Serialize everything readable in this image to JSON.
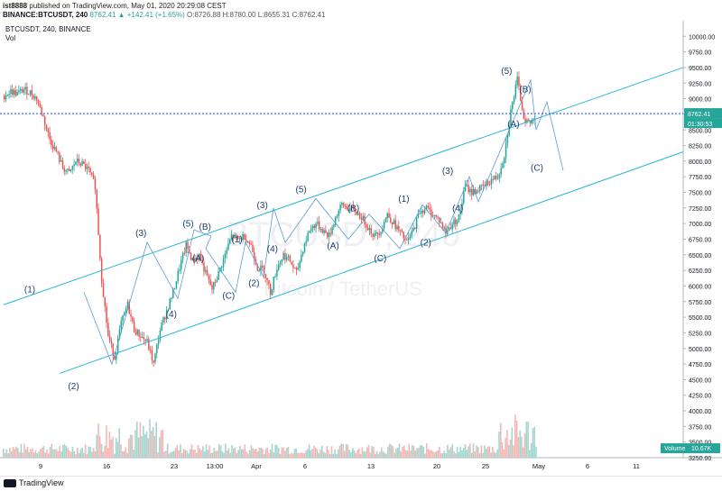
{
  "header": {
    "publisher": "ist8888",
    "published_text": "published on TradingView.com, May 01, 2020 20:29:08 CEST",
    "symbol_line": "BINANCE:BTCUSDT, 240",
    "price_change": "8762.41 ▲ +142.41 (+1.65%)",
    "ohlc": "O:8726.88 H:8780.00 L:8655.31 C:8762.41"
  },
  "chart_title": "BTCUSDT, 240, BINANCE",
  "volume_label": "Vol",
  "watermark": {
    "symbol": "BTCUSDT, 240",
    "name": "Bitcoin / TetherUS"
  },
  "footer": {
    "brand": "TradingView"
  },
  "chart_data": {
    "type": "candlestick",
    "title": "BTCUSDT, 240, BINANCE",
    "xlabel": "",
    "ylabel": "",
    "ylim": [
      3250,
      10250
    ],
    "y_ticks": [
      "10000.00",
      "9750.00",
      "9500.00",
      "9250.00",
      "9000.00",
      "8750.00",
      "8500.00",
      "8250.00",
      "8000.00",
      "7750.00",
      "7500.00",
      "7250.00",
      "7000.00",
      "6750.00",
      "6500.00",
      "6250.00",
      "6000.00",
      "5750.00",
      "5500.00",
      "5250.00",
      "5000.00",
      "4750.00",
      "4500.00",
      "4250.00",
      "4000.00",
      "3750.00",
      "3500.00",
      "3250.00"
    ],
    "x_ticks": [
      "9",
      "16",
      "23",
      "13:00",
      "Apr",
      "6",
      "13",
      "20",
      "25",
      "May",
      "6",
      "11"
    ],
    "last_price": "8762.41",
    "countdown": "01:30:53",
    "volume_value": "10.67K",
    "volume_title": "Volume",
    "colors": {
      "up": "#26a69a",
      "down": "#ef5350",
      "channel": "#29b6d9",
      "wave": "#5b9bd5",
      "label": "#1f3d6e",
      "lastline": "#2962ff"
    },
    "price_path": [
      [
        0,
        9050
      ],
      [
        1,
        9120
      ],
      [
        2,
        9080
      ],
      [
        3,
        9150
      ],
      [
        4,
        9100
      ],
      [
        5,
        9000
      ],
      [
        6,
        8700
      ],
      [
        7,
        8350
      ],
      [
        8,
        8150
      ],
      [
        9,
        7900
      ],
      [
        10,
        7800
      ],
      [
        11,
        8000
      ],
      [
        12,
        7950
      ],
      [
        13,
        7850
      ],
      [
        14,
        7600
      ],
      [
        15,
        6100
      ],
      [
        16,
        5200
      ],
      [
        17,
        4850
      ],
      [
        18,
        5400
      ],
      [
        19,
        5700
      ],
      [
        20,
        5300
      ],
      [
        21,
        5200
      ],
      [
        22,
        5100
      ],
      [
        23,
        4750
      ],
      [
        24,
        5300
      ],
      [
        25,
        5600
      ],
      [
        26,
        5900
      ],
      [
        27,
        6300
      ],
      [
        28,
        6650
      ],
      [
        29,
        6400
      ],
      [
        30,
        6500
      ],
      [
        31,
        6200
      ],
      [
        32,
        5950
      ],
      [
        33,
        6200
      ],
      [
        34,
        6500
      ],
      [
        35,
        6800
      ],
      [
        36,
        6750
      ],
      [
        37,
        6800
      ],
      [
        38,
        6650
      ],
      [
        39,
        6300
      ],
      [
        40,
        6250
      ],
      [
        41,
        5900
      ],
      [
        42,
        6300
      ],
      [
        43,
        6500
      ],
      [
        44,
        6400
      ],
      [
        45,
        6200
      ],
      [
        46,
        6600
      ],
      [
        47,
        6900
      ],
      [
        48,
        7000
      ],
      [
        49,
        6900
      ],
      [
        50,
        6800
      ],
      [
        51,
        7100
      ],
      [
        52,
        7300
      ],
      [
        53,
        7250
      ],
      [
        54,
        7200
      ],
      [
        55,
        7100
      ],
      [
        56,
        6950
      ],
      [
        57,
        6800
      ],
      [
        58,
        6900
      ],
      [
        59,
        7150
      ],
      [
        60,
        7000
      ],
      [
        61,
        6850
      ],
      [
        62,
        6700
      ],
      [
        63,
        6900
      ],
      [
        64,
        7200
      ],
      [
        65,
        7250
      ],
      [
        66,
        7150
      ],
      [
        67,
        7050
      ],
      [
        68,
        6850
      ],
      [
        69,
        7000
      ],
      [
        70,
        7100
      ],
      [
        71,
        7600
      ],
      [
        72,
        7500
      ],
      [
        73,
        7550
      ],
      [
        74,
        7600
      ],
      [
        75,
        7700
      ],
      [
        76,
        7750
      ],
      [
        77,
        8100
      ],
      [
        78,
        8800
      ],
      [
        79,
        9300
      ],
      [
        80,
        8700
      ],
      [
        81,
        8600
      ],
      [
        82,
        8762
      ]
    ],
    "wave_labels": [
      {
        "text": "(1)",
        "x": 1.5,
        "y": 5900
      },
      {
        "text": "(2)",
        "x": 4.1,
        "y": 4350
      },
      {
        "text": "(3)",
        "x": 8.1,
        "y": 6800
      },
      {
        "text": "(4)",
        "x": 9.9,
        "y": 5500
      },
      {
        "text": "(5)",
        "x": 10.9,
        "y": 6950
      },
      {
        "text": "(B)",
        "x": 11.9,
        "y": 6900
      },
      {
        "text": "(A)",
        "x": 11.5,
        "y": 6400
      },
      {
        "text": "(C)",
        "x": 13.3,
        "y": 5800
      },
      {
        "text": "(1)",
        "x": 13.8,
        "y": 6700
      },
      {
        "text": "(2)",
        "x": 14.8,
        "y": 6000
      },
      {
        "text": "(3)",
        "x": 15.3,
        "y": 7250
      },
      {
        "text": "(4)",
        "x": 15.9,
        "y": 6550
      },
      {
        "text": "(5)",
        "x": 17.6,
        "y": 7500
      },
      {
        "text": "(A)",
        "x": 19.5,
        "y": 6600
      },
      {
        "text": "(B)",
        "x": 20.7,
        "y": 7200
      },
      {
        "text": "(C)",
        "x": 22.3,
        "y": 6400
      },
      {
        "text": "(1)",
        "x": 23.7,
        "y": 7350
      },
      {
        "text": "(2)",
        "x": 25.0,
        "y": 6650
      },
      {
        "text": "(3)",
        "x": 26.3,
        "y": 7800
      },
      {
        "text": "(4)",
        "x": 26.9,
        "y": 7200
      },
      {
        "text": "(5)",
        "x": 29.8,
        "y": 9400
      },
      {
        "text": "(A)",
        "x": 30.2,
        "y": 8550
      },
      {
        "text": "(B)",
        "x": 30.9,
        "y": 9100
      },
      {
        "text": "(C)",
        "x": 31.6,
        "y": 7850
      }
    ]
  }
}
